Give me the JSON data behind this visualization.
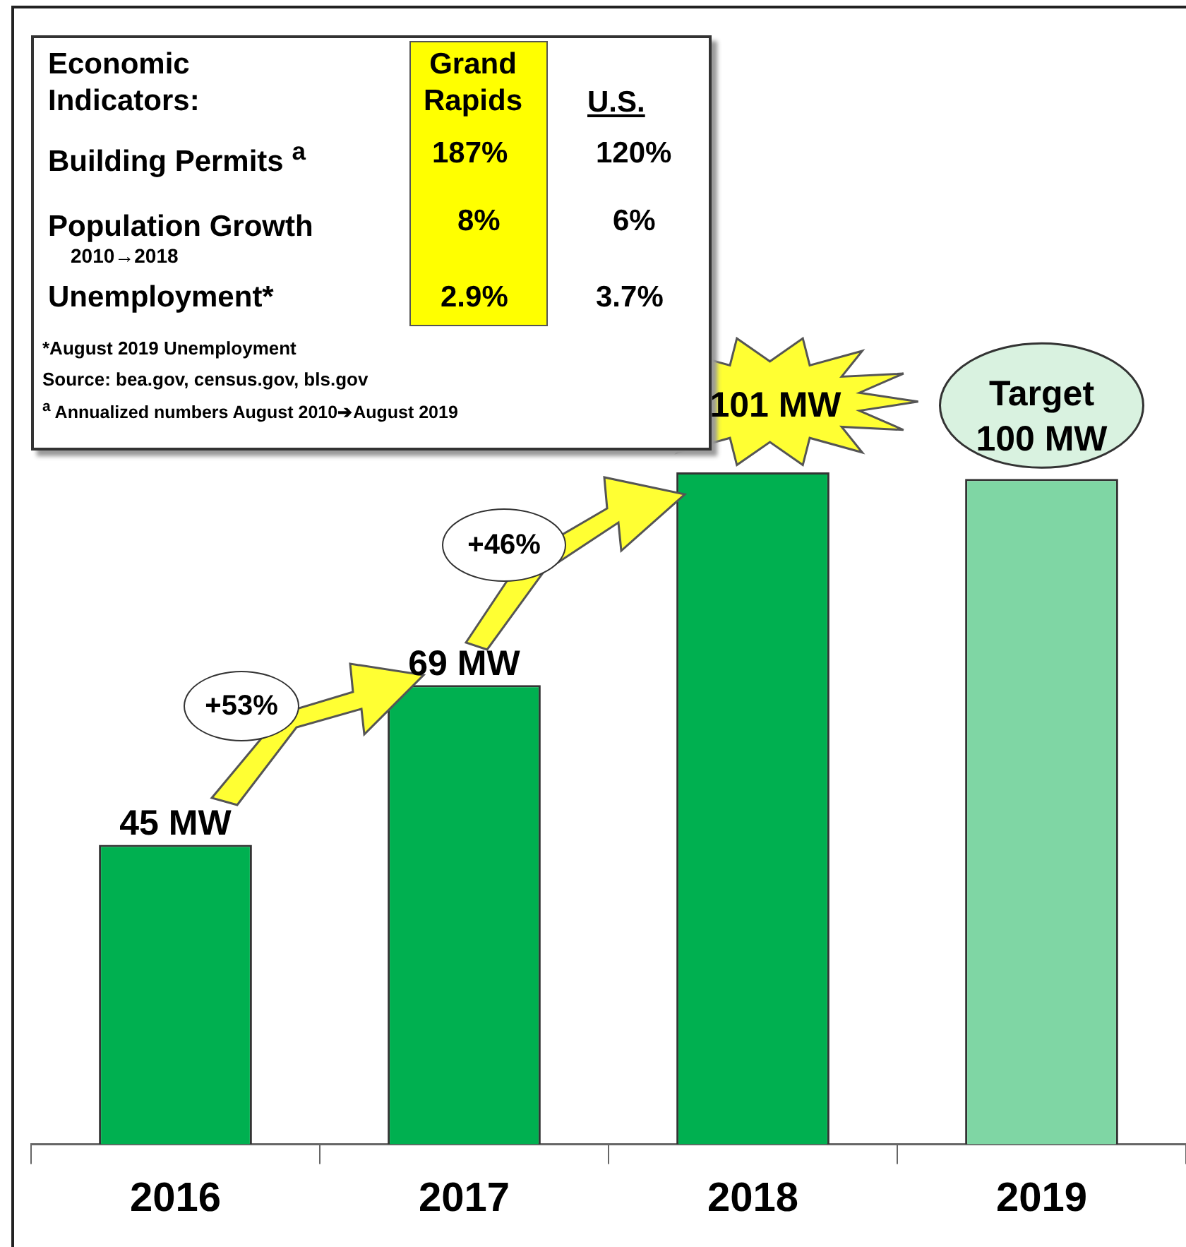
{
  "chart_data": {
    "type": "bar",
    "categories": [
      "2016",
      "2017",
      "2018",
      "2019"
    ],
    "values": [
      45,
      69,
      101,
      100
    ],
    "colors": [
      "#00b050",
      "#00b050",
      "#00b050",
      "#7fd6a4"
    ],
    "value_labels": [
      "45 MW",
      "69 MW",
      "101 MW",
      "Target 100 MW"
    ],
    "ylim": [
      0,
      172
    ],
    "tick_labels": "x",
    "annotations": [
      "Economic Indicators:",
      "Grand Rapids",
      "U.S.",
      "Building Permits $^{a}$",
      "187%",
      "120%",
      "Population Growth",
      "2010→2018",
      "8%",
      "6%",
      "Unemployment*",
      "2.9%",
      "3.7%",
      "*August 2019 Unemployment",
      "Source: bea.gov, census.gov, bls.gov",
      "$^{a}$ Annualized numbers August 2010➔August 2019",
      "+53%",
      "+46%"
    ]
  }
}
